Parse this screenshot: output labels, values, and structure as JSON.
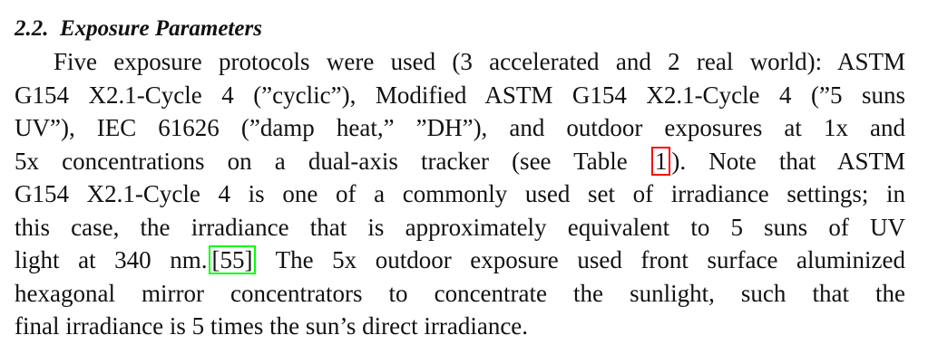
{
  "section": {
    "number": "2.2.",
    "title": "Exposure Parameters"
  },
  "paragraph": {
    "l1": "Five exposure protocols were used (3 accelerated and 2 real world): ASTM",
    "l2": "G154 X2.1-Cycle 4 (”cyclic”), Modified ASTM G154 X2.1-Cycle 4 (”5 suns",
    "l3": "UV”), IEC 61626 (”damp heat,” ”DH”), and outdoor exposures at 1x and",
    "l4a": "5x concentrations on a dual-axis tracker (see Table ",
    "table_ref": "1",
    "l4b": ").  Note that ASTM",
    "l5": "G154 X2.1-Cycle 4 is one of a commonly used set of irradiance settings; in",
    "l6": "this case, the irradiance that is approximately equivalent to 5 suns of UV",
    "l7a": "light at 340 nm.",
    "citation_ref": "[55]",
    "l7b": " The 5x outdoor exposure used front surface aluminized",
    "l8": "hexagonal mirror concentrators to concentrate the sunlight, such that the",
    "l9": "final irradiance is 5 times the sun’s direct irradiance."
  },
  "colors": {
    "table_link_border": "#ff0000",
    "citation_link_border": "#00ff00"
  }
}
